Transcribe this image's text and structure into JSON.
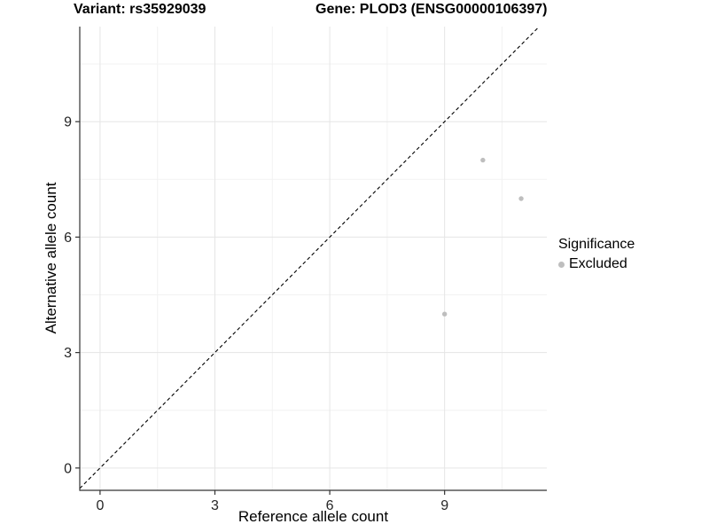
{
  "header": {
    "variant_title": "Variant: rs35929039",
    "gene_title": "Gene: PLOD3 (ENSG00000106397)"
  },
  "chart_data": {
    "type": "scatter",
    "xlabel": "Reference allele count",
    "ylabel": "Alternative allele count",
    "xlim": [
      -0.53,
      11.67
    ],
    "ylim": [
      -0.58,
      11.47
    ],
    "x_major_ticks": [
      0,
      3,
      6,
      9
    ],
    "y_major_ticks": [
      0,
      3,
      6,
      9
    ],
    "x_minor_gridlines": [
      1.5,
      4.5,
      7.5,
      10.5
    ],
    "y_minor_gridlines": [
      1.5,
      4.5,
      7.5,
      10.5
    ],
    "grid": true,
    "identity_line": {
      "equation": "y = x",
      "style": "dashed",
      "color": "#000000"
    },
    "series": [
      {
        "name": "Excluded",
        "color": "#bebebe",
        "points": [
          {
            "x": 10,
            "y": 8
          },
          {
            "x": 11,
            "y": 7
          },
          {
            "x": 9,
            "y": 4
          }
        ]
      }
    ],
    "legend": {
      "title": "Significance",
      "position": "right",
      "items": [
        {
          "label": "Excluded",
          "color": "#bebebe"
        }
      ]
    }
  },
  "colors": {
    "background": "#ffffff",
    "axis_line": "#333333",
    "grid_major": "#e5e5e5",
    "grid_minor": "#f2f2f2",
    "tick_label": "#262626",
    "point": "#bebebe"
  }
}
